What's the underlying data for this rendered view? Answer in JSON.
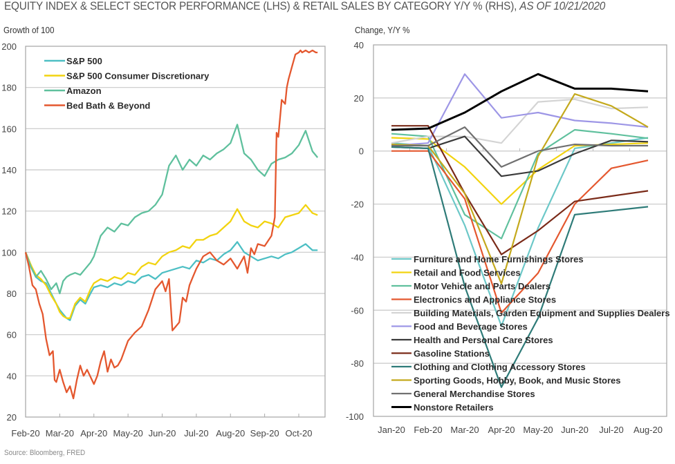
{
  "title": {
    "main": "EQUITY INDEX & SELECT SECTOR PERFORMANCE (LHS) & RETAIL SALES BY CATEGORY Y/Y % (RHS), ",
    "date": "AS OF 10/21/2020"
  },
  "source": "Source: Bloomberg, FRED",
  "chart_data": [
    {
      "type": "line",
      "title": "Equity Index & Select Sector Performance",
      "ylabel": "Growth of 100",
      "xlabel": "",
      "ylim": [
        20,
        200
      ],
      "yticks": [
        20,
        40,
        60,
        80,
        100,
        120,
        140,
        160,
        180,
        200
      ],
      "grid": true,
      "legend_position": "top-left",
      "x_tick_labels": [
        "Feb-20",
        "Mar-20",
        "Apr-20",
        "May-20",
        "Jun-20",
        "Jul-20",
        "Aug-20",
        "Sep-20",
        "Oct-20"
      ],
      "x_range_months": [
        0,
        8.6
      ],
      "series": [
        {
          "name": "S&P 500",
          "color": "#4dbfc4",
          "x": [
            0,
            0.15,
            0.3,
            0.45,
            0.6,
            0.75,
            0.9,
            1.0,
            1.1,
            1.2,
            1.3,
            1.45,
            1.6,
            1.75,
            1.9,
            2.0,
            2.2,
            2.4,
            2.6,
            2.8,
            3.0,
            3.2,
            3.4,
            3.6,
            3.8,
            4.0,
            4.2,
            4.4,
            4.6,
            4.8,
            5.0,
            5.2,
            5.4,
            5.6,
            5.8,
            6.0,
            6.2,
            6.4,
            6.6,
            6.8,
            7.0,
            7.2,
            7.4,
            7.6,
            7.8,
            8.0,
            8.2,
            8.4,
            8.55
          ],
          "y": [
            100,
            94,
            88,
            86,
            85,
            80,
            75,
            72,
            70,
            68,
            67,
            74,
            77,
            75,
            80,
            83,
            84,
            83,
            85,
            84,
            86,
            85,
            88,
            89,
            87,
            90,
            91,
            92,
            93,
            92,
            96,
            95,
            97,
            96,
            99,
            101,
            105,
            100,
            98,
            96,
            97,
            98,
            97,
            99,
            100,
            102,
            104,
            101,
            101
          ]
        },
        {
          "name": "S&P 500 Consumer Discretionary",
          "color": "#f2d30f",
          "x": [
            0,
            0.15,
            0.3,
            0.45,
            0.6,
            0.75,
            0.9,
            1.0,
            1.1,
            1.2,
            1.3,
            1.45,
            1.6,
            1.75,
            1.9,
            2.0,
            2.2,
            2.4,
            2.6,
            2.8,
            3.0,
            3.2,
            3.4,
            3.6,
            3.8,
            4.0,
            4.2,
            4.4,
            4.6,
            4.8,
            5.0,
            5.2,
            5.4,
            5.6,
            5.8,
            6.0,
            6.2,
            6.4,
            6.6,
            6.8,
            7.0,
            7.2,
            7.4,
            7.6,
            7.8,
            8.0,
            8.2,
            8.4,
            8.55
          ],
          "y": [
            100,
            94,
            89,
            87,
            84,
            79,
            75,
            71,
            69,
            68,
            68,
            75,
            78,
            76,
            82,
            85,
            87,
            86,
            88,
            87,
            90,
            89,
            93,
            95,
            94,
            98,
            100,
            101,
            103,
            102,
            106,
            106,
            108,
            109,
            112,
            115,
            121,
            115,
            113,
            112,
            115,
            114,
            112,
            117,
            118,
            119,
            123,
            119,
            118
          ]
        },
        {
          "name": "Amazon",
          "color": "#5fc09d",
          "x": [
            0,
            0.15,
            0.3,
            0.45,
            0.6,
            0.75,
            0.9,
            1.0,
            1.1,
            1.2,
            1.3,
            1.45,
            1.6,
            1.75,
            1.9,
            2.0,
            2.2,
            2.4,
            2.6,
            2.8,
            3.0,
            3.2,
            3.4,
            3.6,
            3.8,
            4.0,
            4.2,
            4.4,
            4.6,
            4.8,
            5.0,
            5.2,
            5.4,
            5.6,
            5.8,
            6.0,
            6.2,
            6.4,
            6.6,
            6.8,
            7.0,
            7.2,
            7.4,
            7.6,
            7.8,
            8.0,
            8.2,
            8.4,
            8.55
          ],
          "y": [
            100,
            93,
            88,
            91,
            87,
            82,
            85,
            80,
            86,
            88,
            89,
            90,
            89,
            92,
            95,
            98,
            108,
            112,
            110,
            114,
            113,
            117,
            119,
            120,
            123,
            128,
            142,
            147,
            140,
            145,
            142,
            147,
            145,
            148,
            150,
            153,
            162,
            148,
            145,
            140,
            137,
            143,
            145,
            146,
            148,
            152,
            159,
            149,
            146
          ]
        },
        {
          "name": "Bed Bath & Beyond",
          "color": "#e4572e",
          "x": [
            0,
            0.1,
            0.2,
            0.3,
            0.4,
            0.5,
            0.6,
            0.7,
            0.8,
            0.85,
            0.9,
            1.0,
            1.1,
            1.2,
            1.3,
            1.4,
            1.5,
            1.6,
            1.7,
            1.8,
            2.0,
            2.1,
            2.2,
            2.3,
            2.4,
            2.5,
            2.6,
            2.7,
            2.8,
            3.0,
            3.2,
            3.4,
            3.6,
            3.8,
            4.0,
            4.1,
            4.2,
            4.3,
            4.5,
            4.6,
            4.7,
            4.8,
            4.9,
            5.0,
            5.2,
            5.4,
            5.6,
            5.8,
            6.0,
            6.2,
            6.4,
            6.5,
            6.6,
            6.7,
            6.8,
            7.0,
            7.2,
            7.3,
            7.35,
            7.4,
            7.5,
            7.6,
            7.65,
            7.7,
            7.8,
            7.9,
            8.0,
            8.05,
            8.1,
            8.2,
            8.3,
            8.4,
            8.5,
            8.55
          ],
          "y": [
            100,
            93,
            84,
            82,
            75,
            70,
            58,
            50,
            52,
            38,
            37,
            43,
            37,
            32,
            35,
            29,
            38,
            45,
            40,
            43,
            36,
            40,
            47,
            52,
            42,
            48,
            44,
            45,
            48,
            57,
            61,
            64,
            72,
            82,
            86,
            81,
            87,
            62,
            66,
            78,
            76,
            84,
            88,
            92,
            98,
            100,
            96,
            94,
            97,
            92,
            98,
            90,
            102,
            99,
            104,
            103,
            108,
            117,
            158,
            156,
            174,
            172,
            180,
            184,
            190,
            196,
            197,
            198,
            197,
            198,
            197,
            198,
            197,
            197
          ]
        }
      ]
    },
    {
      "type": "line",
      "title": "Retail Sales by Category Y/Y %",
      "ylabel": "Change, Y/Y %",
      "xlabel": "",
      "ylim": [
        -100,
        40
      ],
      "yticks": [
        -100,
        -80,
        -60,
        -40,
        -20,
        0,
        20,
        40
      ],
      "grid": true,
      "legend_position": "bottom-left",
      "categories": [
        "Jan-20",
        "Feb-20",
        "Mar-20",
        "Apr-20",
        "May-20",
        "Jun-20",
        "Jul-20",
        "Aug-20"
      ],
      "series": [
        {
          "name": "Furniture and Home Furnishings Stores",
          "color": "#6cc8c8",
          "values": [
            3,
            2,
            -28,
            -66,
            -29,
            1,
            3,
            5
          ]
        },
        {
          "name": "Retail and Food Services",
          "color": "#f2d30f",
          "values": [
            5,
            4.5,
            -6,
            -20,
            -7,
            2,
            2.5,
            3
          ]
        },
        {
          "name": "Motor Vehicle and Parts Dealers",
          "color": "#5fc09d",
          "values": [
            6.5,
            5.5,
            -24,
            -33,
            -1,
            8,
            6.5,
            4.8
          ]
        },
        {
          "name": "Electronics and Appliance Stores",
          "color": "#e4572e",
          "values": [
            0,
            0,
            -18,
            -61,
            -46,
            -20,
            -6.5,
            -3.5
          ]
        },
        {
          "name": "Building Materials, Garden Equipment and Supplies Dealers",
          "color": "#d4d4d4",
          "values": [
            3,
            5.5,
            5.5,
            3,
            18.5,
            19.5,
            16,
            16.5
          ]
        },
        {
          "name": "Food and Beverage Stores",
          "color": "#9d96e6",
          "values": [
            2,
            3,
            29,
            12.5,
            14.5,
            11.5,
            10.5,
            9
          ]
        },
        {
          "name": "Health and Personal Care Stores",
          "color": "#3a3a3a",
          "values": [
            1.5,
            1,
            5.5,
            -9.5,
            -7.5,
            -1,
            4,
            3.5
          ]
        },
        {
          "name": "Gasoline Stations",
          "color": "#7a2a18",
          "values": [
            9.5,
            9.5,
            -16,
            -39,
            -30,
            -19,
            -17,
            -15
          ]
        },
        {
          "name": "Clothing and Clothing Accessory Stores",
          "color": "#2e7b78",
          "values": [
            1.5,
            1,
            -51,
            -89,
            -63,
            -24,
            -22.5,
            -21
          ]
        },
        {
          "name": "Sporting Goods, Hobby, Book, and Music Stores",
          "color": "#c4a91c",
          "values": [
            2.5,
            2,
            -16,
            -50,
            -2,
            21.5,
            17,
            9
          ]
        },
        {
          "name": "General Merchandise Stores",
          "color": "#707070",
          "values": [
            2,
            2,
            9,
            -6,
            0,
            2.5,
            2,
            2
          ]
        },
        {
          "name": "Nonstore Retailers",
          "color": "#000000",
          "values": [
            8,
            8.5,
            14.5,
            22.5,
            29,
            23.5,
            23.5,
            22.5
          ]
        }
      ]
    }
  ]
}
